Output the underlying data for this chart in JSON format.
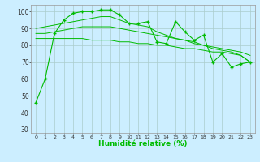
{
  "title": "",
  "xlabel": "Humidité relative (%)",
  "ylabel": "",
  "bg_color": "#cceeff",
  "grid_color": "#aacccc",
  "line_color": "#00bb00",
  "xlim": [
    -0.5,
    23.5
  ],
  "ylim": [
    28,
    104
  ],
  "yticks": [
    30,
    40,
    50,
    60,
    70,
    80,
    90,
    100
  ],
  "xticks": [
    0,
    1,
    2,
    3,
    4,
    5,
    6,
    7,
    8,
    9,
    10,
    11,
    12,
    13,
    14,
    15,
    16,
    17,
    18,
    19,
    20,
    21,
    22,
    23
  ],
  "series_main": [
    46,
    60,
    87,
    95,
    99,
    100,
    100,
    101,
    101,
    98,
    93,
    93,
    94,
    82,
    81,
    94,
    88,
    83,
    86,
    70,
    75,
    67,
    69,
    70
  ],
  "series_smooth": [
    [
      87,
      87,
      88,
      89,
      90,
      91,
      91,
      91,
      91,
      90,
      89,
      88,
      87,
      86,
      85,
      84,
      83,
      82,
      80,
      79,
      78,
      77,
      76,
      74
    ],
    [
      84,
      84,
      84,
      84,
      84,
      84,
      83,
      83,
      83,
      82,
      82,
      81,
      81,
      80,
      80,
      79,
      78,
      78,
      77,
      76,
      76,
      75,
      74,
      70
    ],
    [
      90,
      91,
      92,
      93,
      94,
      95,
      96,
      97,
      97,
      95,
      93,
      92,
      91,
      88,
      86,
      84,
      83,
      81,
      80,
      78,
      77,
      76,
      74,
      70
    ]
  ]
}
